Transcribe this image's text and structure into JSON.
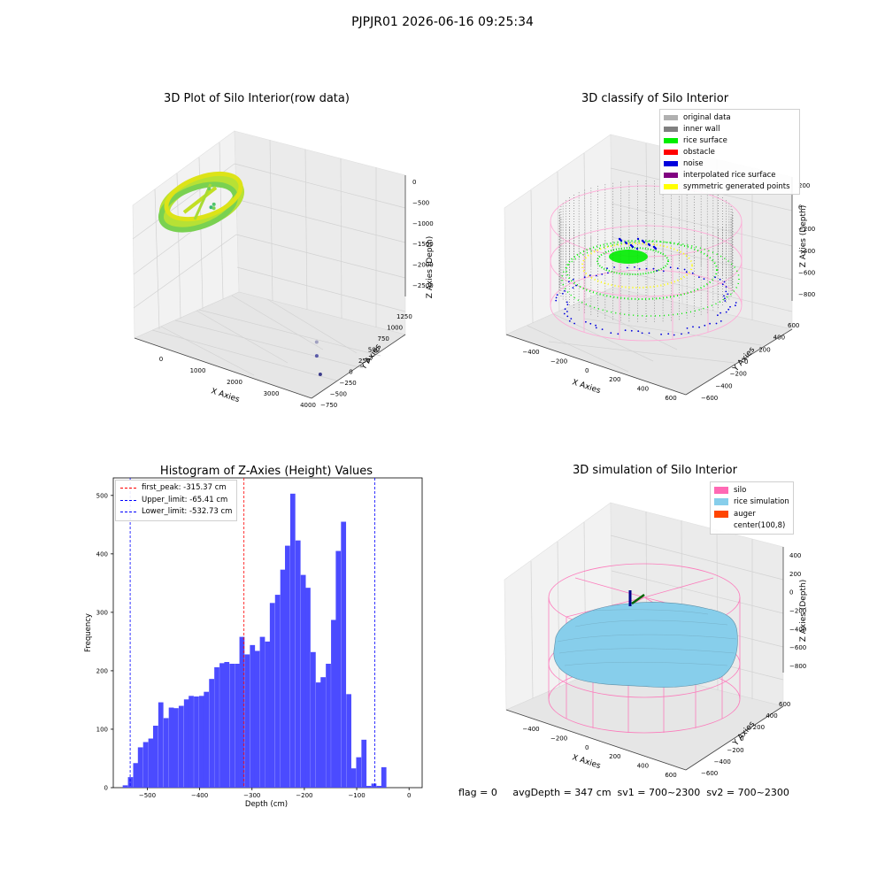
{
  "figure": {
    "suptitle": "PJPJR01 2026-06-16 09:25:34",
    "info_text": "flag = 0     avgDepth = 347 cm  sv1 = 700~2300  sv2 = 700~2300"
  },
  "chart_data": [
    {
      "type": "scatter",
      "title": "3D Plot of Silo Interior(row data)",
      "xlabel": "X Axies",
      "ylabel": "Y Axies",
      "zlabel": "Z Axies (Depth)",
      "x_ticks": [
        "0",
        "1000",
        "2000",
        "3000",
        "4000"
      ],
      "y_ticks": [
        "−750",
        "−500",
        "−250",
        "0",
        "250",
        "500",
        "750",
        "1000",
        "1250"
      ],
      "z_ticks": [
        "0",
        "−500",
        "−1000",
        "−1500",
        "−2000",
        "−2500"
      ],
      "xlim": [
        -500,
        4000
      ],
      "ylim": [
        -750,
        1300
      ],
      "zlim": [
        -2700,
        0
      ],
      "colormap": "viridis",
      "outlier_points": [
        {
          "x": 350,
          "y": 150,
          "z": -450
        },
        {
          "x": 480,
          "y": 80,
          "z": -700
        },
        {
          "x": 600,
          "y": 40,
          "z": -600
        },
        {
          "x": 620,
          "y": 20,
          "z": -650
        },
        {
          "x": 3200,
          "y": 50,
          "z": -2350
        },
        {
          "x": 3400,
          "y": -120,
          "z": -2450
        },
        {
          "x": 3700,
          "y": -300,
          "z": -2600
        }
      ]
    },
    {
      "type": "scatter",
      "title": "3D classify of Silo Interior",
      "xlabel": "X Axies",
      "ylabel": "Y Axies",
      "zlabel": "Z Axies (Depth)",
      "x_ticks": [
        "−400",
        "−200",
        "0",
        "200",
        "400",
        "600"
      ],
      "y_ticks": [
        "−600",
        "−400",
        "−200",
        "0",
        "200",
        "400",
        "600"
      ],
      "z_ticks": [
        "200",
        "0",
        "−200",
        "−400",
        "−600",
        "−800"
      ],
      "legend_position": "top-right",
      "legend": [
        {
          "label": "original data",
          "color": "#b0b0b0"
        },
        {
          "label": "inner wall",
          "color": "#808080"
        },
        {
          "label": "rice surface",
          "color": "#00ee00"
        },
        {
          "label": "obstacle",
          "color": "#ff0000"
        },
        {
          "label": "noise",
          "color": "#0000dd"
        },
        {
          "label": "interpolated rice surface",
          "color": "#800080"
        },
        {
          "label": "symmetric generated points",
          "color": "#ffff00"
        }
      ]
    },
    {
      "type": "bar",
      "title": "Histogram of Z-Axies (Height) Values",
      "xlabel": "Depth (cm)",
      "ylabel": "Frequency",
      "xlim": [
        -565,
        25
      ],
      "ylim": [
        0,
        530
      ],
      "x_ticks": [
        -500,
        -400,
        -300,
        -200,
        -100,
        0
      ],
      "y_ticks": [
        0,
        100,
        200,
        300,
        400,
        500
      ],
      "bar_color": "#4b4bff",
      "bin_width": 9.7,
      "bins": [
        {
          "x": -547,
          "value": 4
        },
        {
          "x": -537,
          "value": 18
        },
        {
          "x": -527,
          "value": 42
        },
        {
          "x": -518,
          "value": 69
        },
        {
          "x": -508,
          "value": 78
        },
        {
          "x": -498,
          "value": 84
        },
        {
          "x": -489,
          "value": 106
        },
        {
          "x": -479,
          "value": 146
        },
        {
          "x": -469,
          "value": 119
        },
        {
          "x": -459,
          "value": 137
        },
        {
          "x": -450,
          "value": 136
        },
        {
          "x": -440,
          "value": 140
        },
        {
          "x": -430,
          "value": 151
        },
        {
          "x": -421,
          "value": 157
        },
        {
          "x": -411,
          "value": 156
        },
        {
          "x": -401,
          "value": 157
        },
        {
          "x": -392,
          "value": 164
        },
        {
          "x": -382,
          "value": 186
        },
        {
          "x": -372,
          "value": 206
        },
        {
          "x": -362,
          "value": 213
        },
        {
          "x": -353,
          "value": 215
        },
        {
          "x": -343,
          "value": 212
        },
        {
          "x": -333,
          "value": 212
        },
        {
          "x": -324,
          "value": 258
        },
        {
          "x": -314,
          "value": 228
        },
        {
          "x": -304,
          "value": 244
        },
        {
          "x": -295,
          "value": 234
        },
        {
          "x": -285,
          "value": 258
        },
        {
          "x": -275,
          "value": 250
        },
        {
          "x": -266,
          "value": 316
        },
        {
          "x": -256,
          "value": 330
        },
        {
          "x": -246,
          "value": 373
        },
        {
          "x": -237,
          "value": 414
        },
        {
          "x": -227,
          "value": 503
        },
        {
          "x": -217,
          "value": 423
        },
        {
          "x": -207,
          "value": 364
        },
        {
          "x": -198,
          "value": 342
        },
        {
          "x": -188,
          "value": 232
        },
        {
          "x": -178,
          "value": 180
        },
        {
          "x": -169,
          "value": 189
        },
        {
          "x": -159,
          "value": 212
        },
        {
          "x": -149,
          "value": 287
        },
        {
          "x": -140,
          "value": 405
        },
        {
          "x": -130,
          "value": 455
        },
        {
          "x": -120,
          "value": 160
        },
        {
          "x": -111,
          "value": 33
        },
        {
          "x": -101,
          "value": 52
        },
        {
          "x": -91,
          "value": 82
        },
        {
          "x": -82,
          "value": 3
        },
        {
          "x": -72,
          "value": 7
        },
        {
          "x": -62,
          "value": 3
        },
        {
          "x": -53,
          "value": 35
        }
      ],
      "vlines": [
        {
          "label": "first_peak: -315.37 cm",
          "x": -315.37,
          "color": "#ff0000"
        },
        {
          "label": "Upper_limit: -65.41 cm",
          "x": -65.41,
          "color": "#0000ff"
        },
        {
          "label": "Lower_limit: -532.73 cm",
          "x": -532.73,
          "color": "#0000ff"
        }
      ],
      "legend_position": "top-left"
    },
    {
      "type": "surface",
      "title": "3D simulation of Silo Interior",
      "xlabel": "X Axies",
      "ylabel": "Y Axies",
      "zlabel": "Z Axies (Depth)",
      "x_ticks": [
        "−400",
        "−200",
        "0",
        "200",
        "400",
        "600"
      ],
      "y_ticks": [
        "−600",
        "−400",
        "−200",
        "0",
        "200",
        "400",
        "600"
      ],
      "z_ticks": [
        "400",
        "200",
        "0",
        "−200",
        "−400",
        "−600",
        "−800"
      ],
      "legend_position": "top-right",
      "legend": [
        {
          "label": "silo",
          "color": "#ff69b4"
        },
        {
          "label": "rice simulation",
          "color": "#87ceeb"
        },
        {
          "label": "auger",
          "color": "#ff4500"
        },
        {
          "label": "center(100,8)",
          "color": "#ffffff"
        }
      ]
    }
  ]
}
